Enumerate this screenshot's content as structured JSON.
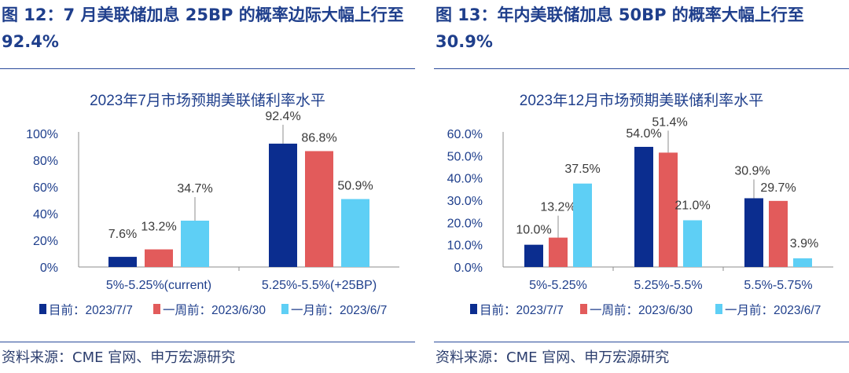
{
  "left": {
    "figure_title": "图 12：7 月美联储加息 25BP 的概率边际大幅上行至 92.4%",
    "source": "资料来源：CME 官网、申万宏源研究"
  },
  "right": {
    "figure_title": "图 13：年内美联储加息 50BP 的概率大幅上行至 30.9%",
    "source": "资料来源：CME 官网、申万宏源研究"
  },
  "colors": {
    "current": "#0b2d8f",
    "one_week": "#e25b5b",
    "one_month": "#5ecff5",
    "heading": "#1f3f8c"
  },
  "chart_data": [
    {
      "type": "bar",
      "title": "2023年7月市场预期美联储利率水平",
      "categories": [
        "5%-5.25%(current)",
        "5.25%-5.5%(+25BP)"
      ],
      "series": [
        {
          "name": "目前：2023/7/7",
          "values": [
            7.6,
            92.4
          ]
        },
        {
          "name": "一周前：2023/6/30",
          "values": [
            13.2,
            86.8
          ]
        },
        {
          "name": "一月前：2023/6/7",
          "values": [
            34.7,
            50.9
          ]
        }
      ],
      "data_labels": [
        [
          "7.6%",
          "13.2%",
          "34.7%"
        ],
        [
          "92.4%",
          "86.8%",
          "50.9%"
        ]
      ],
      "yticks": [
        "0%",
        "20%",
        "40%",
        "60%",
        "80%",
        "100%"
      ],
      "ylim": [
        0,
        100
      ],
      "legend_position": "bottom"
    },
    {
      "type": "bar",
      "title": "2023年12月市场预期美联储利率水平",
      "categories": [
        "5%-5.25%",
        "5.25%-5.5%",
        "5.5%-5.75%"
      ],
      "series": [
        {
          "name": "目前：2023/7/7",
          "values": [
            10.0,
            54.0,
            30.9
          ]
        },
        {
          "name": "一周前：2023/6/30",
          "values": [
            13.2,
            51.4,
            29.7
          ]
        },
        {
          "name": "一月前：2023/6/7",
          "values": [
            37.5,
            21.0,
            3.9
          ]
        }
      ],
      "data_labels": [
        [
          "10.0%",
          "13.2%",
          "37.5%"
        ],
        [
          "54.0%",
          "51.4%",
          "21.0%"
        ],
        [
          "30.9%",
          "29.7%",
          "3.9%"
        ]
      ],
      "yticks": [
        "0.0%",
        "10.0%",
        "20.0%",
        "30.0%",
        "40.0%",
        "50.0%",
        "60.0%"
      ],
      "ylim": [
        0,
        60
      ],
      "legend_position": "bottom"
    }
  ]
}
